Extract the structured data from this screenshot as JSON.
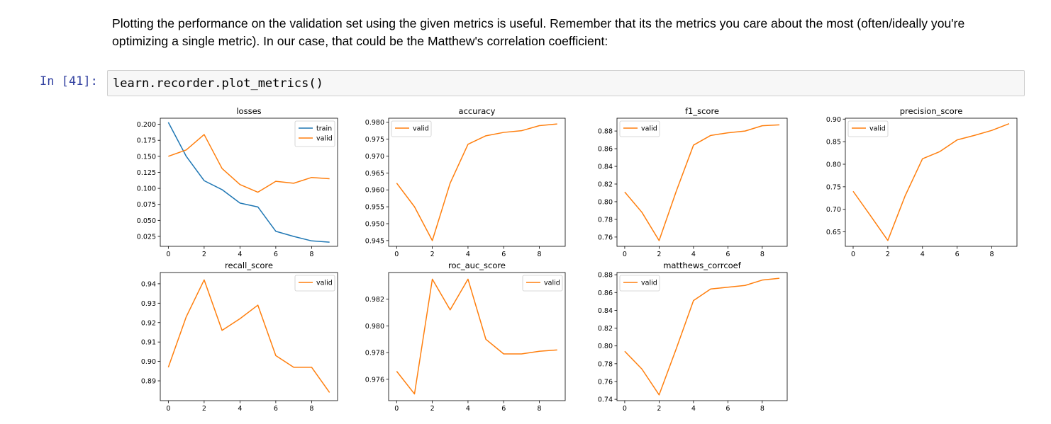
{
  "markdown": {
    "text": "Plotting the performance on the validation set using the given metrics is useful. Remember that its the metrics you care about the most (often/ideally you're optimizing a single metric). In our case, that could be the Matthew's correlation coefficient:"
  },
  "cell": {
    "prompt": "In [41]:",
    "code": "learn.recorder.plot_metrics()"
  },
  "colors": {
    "train": "#1f77b4",
    "valid": "#ff7f0e",
    "prompt": "#303f9f"
  },
  "chart_data": [
    {
      "type": "line",
      "title": "losses",
      "x": [
        0,
        1,
        2,
        3,
        4,
        5,
        6,
        7,
        8,
        9
      ],
      "xlim": [
        -0.45,
        9.45
      ],
      "xticks": [
        0,
        2,
        4,
        6,
        8
      ],
      "ylim": [
        0.0095,
        0.2095
      ],
      "yticks": [
        0.025,
        0.05,
        0.075,
        0.1,
        0.125,
        0.15,
        0.175,
        0.2
      ],
      "ytick_labels": [
        "0.025",
        "0.050",
        "0.075",
        "0.100",
        "0.125",
        "0.150",
        "0.175",
        "0.200"
      ],
      "legend_position": "top-right",
      "series": [
        {
          "name": "train",
          "color": "#1f77b4",
          "values": [
            0.203,
            0.15,
            0.112,
            0.098,
            0.077,
            0.071,
            0.033,
            0.025,
            0.018,
            0.016
          ]
        },
        {
          "name": "valid",
          "color": "#ff7f0e",
          "values": [
            0.15,
            0.16,
            0.184,
            0.131,
            0.106,
            0.094,
            0.111,
            0.108,
            0.117,
            0.115
          ]
        }
      ]
    },
    {
      "type": "line",
      "title": "accuracy",
      "x": [
        0,
        1,
        2,
        3,
        4,
        5,
        6,
        7,
        8,
        9
      ],
      "xlim": [
        -0.45,
        9.45
      ],
      "xticks": [
        0,
        2,
        4,
        6,
        8
      ],
      "ylim": [
        0.9433,
        0.9812
      ],
      "yticks": [
        0.945,
        0.95,
        0.955,
        0.96,
        0.965,
        0.97,
        0.975,
        0.98
      ],
      "ytick_labels": [
        "0.945",
        "0.950",
        "0.955",
        "0.960",
        "0.965",
        "0.970",
        "0.975",
        "0.980"
      ],
      "legend_position": "top-left",
      "series": [
        {
          "name": "valid",
          "color": "#ff7f0e",
          "values": [
            0.962,
            0.955,
            0.945,
            0.962,
            0.9735,
            0.976,
            0.977,
            0.9775,
            0.979,
            0.9795
          ]
        }
      ]
    },
    {
      "type": "line",
      "title": "f1_score",
      "x": [
        0,
        1,
        2,
        3,
        4,
        5,
        6,
        7,
        8,
        9
      ],
      "xlim": [
        -0.45,
        9.45
      ],
      "xticks": [
        0,
        2,
        4,
        6,
        8
      ],
      "ylim": [
        0.7495,
        0.8945
      ],
      "yticks": [
        0.76,
        0.78,
        0.8,
        0.82,
        0.84,
        0.86,
        0.88
      ],
      "ytick_labels": [
        "0.76",
        "0.78",
        "0.80",
        "0.82",
        "0.84",
        "0.86",
        "0.88"
      ],
      "legend_position": "top-left",
      "series": [
        {
          "name": "valid",
          "color": "#ff7f0e",
          "values": [
            0.811,
            0.788,
            0.756,
            0.812,
            0.864,
            0.875,
            0.878,
            0.88,
            0.886,
            0.887
          ]
        }
      ]
    },
    {
      "type": "line",
      "title": "precision_score",
      "x": [
        0,
        1,
        2,
        3,
        4,
        5,
        6,
        7,
        8,
        9
      ],
      "xlim": [
        -0.45,
        9.45
      ],
      "xticks": [
        0,
        2,
        4,
        6,
        8
      ],
      "ylim": [
        0.618,
        0.902
      ],
      "yticks": [
        0.65,
        0.7,
        0.75,
        0.8,
        0.85,
        0.9
      ],
      "ytick_labels": [
        "0.65",
        "0.70",
        "0.75",
        "0.80",
        "0.85",
        "0.90"
      ],
      "legend_position": "top-left",
      "series": [
        {
          "name": "valid",
          "color": "#ff7f0e",
          "values": [
            0.74,
            0.686,
            0.631,
            0.73,
            0.812,
            0.828,
            0.854,
            0.864,
            0.875,
            0.89
          ]
        }
      ]
    },
    {
      "type": "line",
      "title": "recall_score",
      "x": [
        0,
        1,
        2,
        3,
        4,
        5,
        6,
        7,
        8,
        9
      ],
      "xlim": [
        -0.45,
        9.45
      ],
      "xticks": [
        0,
        2,
        4,
        6,
        8
      ],
      "ylim": [
        0.8798,
        0.9458
      ],
      "yticks": [
        0.89,
        0.9,
        0.91,
        0.92,
        0.93,
        0.94
      ],
      "ytick_labels": [
        "0.89",
        "0.90",
        "0.91",
        "0.92",
        "0.93",
        "0.94"
      ],
      "legend_position": "top-right",
      "series": [
        {
          "name": "valid",
          "color": "#ff7f0e",
          "values": [
            0.897,
            0.923,
            0.942,
            0.916,
            0.922,
            0.929,
            0.903,
            0.897,
            0.897,
            0.884
          ]
        }
      ]
    },
    {
      "type": "line",
      "title": "roc_auc_score",
      "x": [
        0,
        1,
        2,
        3,
        4,
        5,
        6,
        7,
        8,
        9
      ],
      "xlim": [
        -0.45,
        9.45
      ],
      "xticks": [
        0,
        2,
        4,
        6,
        8
      ],
      "ylim": [
        0.9744,
        0.984
      ],
      "yticks": [
        0.976,
        0.978,
        0.98,
        0.982
      ],
      "ytick_labels": [
        "0.976",
        "0.978",
        "0.980",
        "0.982"
      ],
      "legend_position": "top-right",
      "series": [
        {
          "name": "valid",
          "color": "#ff7f0e",
          "values": [
            0.9766,
            0.9749,
            0.9835,
            0.9812,
            0.9835,
            0.979,
            0.9779,
            0.9779,
            0.9781,
            0.9782
          ]
        }
      ]
    },
    {
      "type": "line",
      "title": "matthews_corrcoef",
      "x": [
        0,
        1,
        2,
        3,
        4,
        5,
        6,
        7,
        8,
        9
      ],
      "xlim": [
        -0.45,
        9.45
      ],
      "xticks": [
        0,
        2,
        4,
        6,
        8
      ],
      "ylim": [
        0.7385,
        0.8825
      ],
      "yticks": [
        0.74,
        0.76,
        0.78,
        0.8,
        0.82,
        0.84,
        0.86,
        0.88
      ],
      "ytick_labels": [
        "0.74",
        "0.76",
        "0.78",
        "0.80",
        "0.82",
        "0.84",
        "0.86",
        "0.88"
      ],
      "legend_position": "top-left",
      "series": [
        {
          "name": "valid",
          "color": "#ff7f0e",
          "values": [
            0.794,
            0.774,
            0.745,
            0.797,
            0.851,
            0.864,
            0.866,
            0.868,
            0.874,
            0.876
          ]
        }
      ]
    }
  ]
}
